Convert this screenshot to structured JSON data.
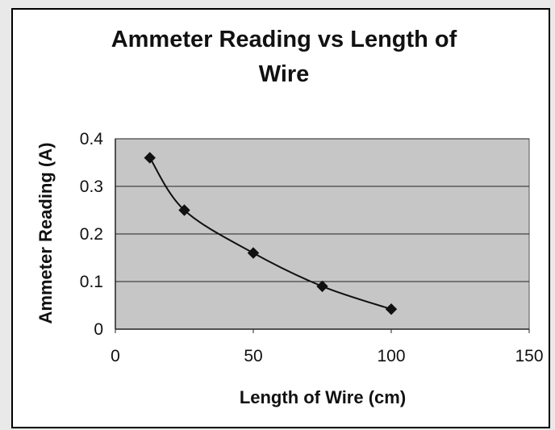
{
  "chart_data": {
    "type": "scatter",
    "title": "Ammeter Reading vs Length of Wire",
    "title_lines": [
      "Ammeter Reading vs Length of",
      "Wire"
    ],
    "xlabel": "Length of Wire (cm)",
    "ylabel": "Ammeter Reading (A)",
    "xlim": [
      0,
      150
    ],
    "ylim": [
      0,
      0.4
    ],
    "x_ticks": [
      "0",
      "50",
      "100",
      "150"
    ],
    "y_ticks": [
      "0",
      "0.1",
      "0.2",
      "0.3",
      "0.4"
    ],
    "grid": "horizontal",
    "legend": "none",
    "smoothed_line": true,
    "marker": "diamond",
    "series": [
      {
        "x": [
          12.5,
          25,
          50,
          75,
          100
        ],
        "y": [
          0.36,
          0.25,
          0.16,
          0.09,
          0.042
        ]
      }
    ],
    "colors": {
      "plot_area": "#c6c6c6",
      "line": "#111111",
      "marker": "#111111",
      "gridline": "#222222"
    }
  }
}
